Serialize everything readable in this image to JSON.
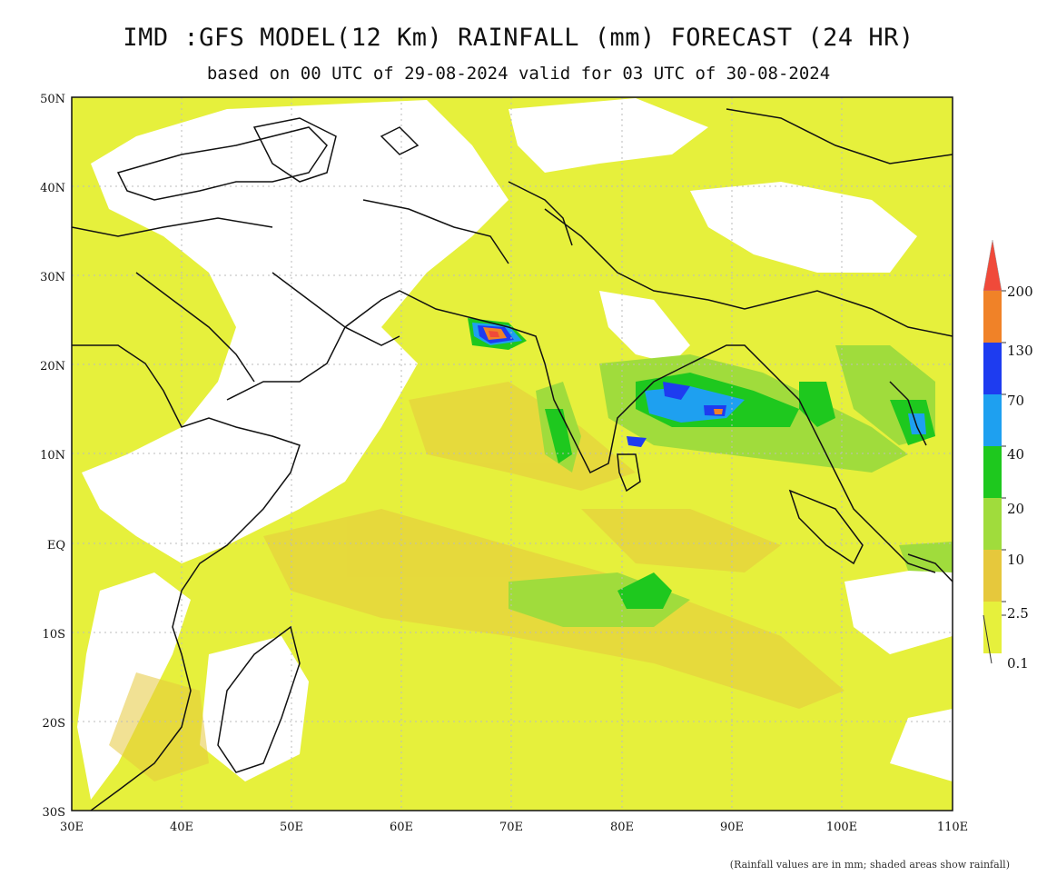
{
  "title": "IMD :GFS MODEL(12 Km) RAINFALL (mm) FORECAST (24 HR)",
  "subtitle": "based on 00 UTC of 29-08-2024 valid for 03 UTC of 30-08-2024",
  "map": {
    "lat_range": [
      -30,
      50
    ],
    "lon_range": [
      30,
      110
    ],
    "lat_ticks": [
      "50N",
      "40N",
      "30N",
      "20N",
      "10N",
      "EQ",
      "10S",
      "20S",
      "30S"
    ],
    "lon_ticks": [
      "30E",
      "40E",
      "50E",
      "60E",
      "70E",
      "80E",
      "90E",
      "100E",
      "110E"
    ]
  },
  "legend": {
    "levels": [
      "200",
      "130",
      "70",
      "40",
      "20",
      "10",
      "2.5",
      "0.1"
    ],
    "colors": [
      "#f04a3a",
      "#f08228",
      "#1e3cf0",
      "#1ea0f0",
      "#1ec81e",
      "#a0dc3c",
      "#e6c83c",
      "#e6f03c"
    ]
  },
  "footnote": "(Rainfall values are in mm; shaded areas show rainfall)"
}
